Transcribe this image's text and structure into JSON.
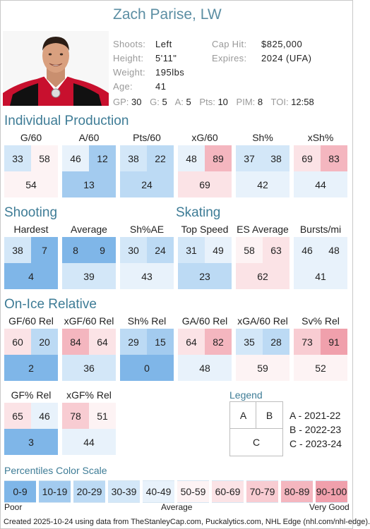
{
  "player": {
    "name": "Zach Parise, LW"
  },
  "bio": [
    {
      "key": "Shoots:",
      "value": "Left"
    },
    {
      "key": "Height:",
      "value": "5'11\""
    },
    {
      "key": "Weight:",
      "value": "195lbs"
    },
    {
      "key": "Age:",
      "value": "41"
    }
  ],
  "contract": [
    {
      "key": "Cap Hit:",
      "value": "$825,000"
    },
    {
      "key": "Expires:",
      "value": "2024 (UFA)"
    }
  ],
  "statline": [
    {
      "key": "GP:",
      "value": "30"
    },
    {
      "key": "G:",
      "value": "5"
    },
    {
      "key": "A:",
      "value": "5"
    },
    {
      "key": "Pts:",
      "value": "10"
    },
    {
      "key": "PIM:",
      "value": "8"
    },
    {
      "key": "TOI:",
      "value": "12:58"
    }
  ],
  "sections": {
    "individual": "Individual Production",
    "shooting": "Shooting",
    "skating": "Skating",
    "onice": "On-Ice Relative"
  },
  "metrics": {
    "row1": [
      {
        "label": "G/60",
        "a": "33",
        "b": "58",
        "c": "54"
      },
      {
        "label": "A/60",
        "a": "46",
        "b": "12",
        "c": "13"
      },
      {
        "label": "Pts/60",
        "a": "38",
        "b": "22",
        "c": "24"
      },
      {
        "label": "xG/60",
        "a": "48",
        "b": "89",
        "c": "69"
      },
      {
        "label": "Sh%",
        "a": "37",
        "b": "38",
        "c": "42"
      },
      {
        "label": "xSh%",
        "a": "69",
        "b": "83",
        "c": "44"
      }
    ],
    "row2": [
      {
        "label": "Hardest",
        "a": "38",
        "b": "7",
        "c": "4"
      },
      {
        "label": "Average",
        "a": "8",
        "b": "9",
        "c": "39"
      },
      {
        "label": "Sh%AE",
        "a": "30",
        "b": "24",
        "c": "43"
      },
      {
        "label": "Top Speed",
        "a": "31",
        "b": "49",
        "c": "23"
      },
      {
        "label": "ES Average",
        "a": "58",
        "b": "63",
        "c": "62"
      },
      {
        "label": "Bursts/mi",
        "a": "46",
        "b": "48",
        "c": "41"
      }
    ],
    "row3": [
      {
        "label": "GF/60 Rel",
        "a": "60",
        "b": "20",
        "c": "2"
      },
      {
        "label": "xGF/60 Rel",
        "a": "84",
        "b": "64",
        "c": "36"
      },
      {
        "label": "Sh% Rel",
        "a": "29",
        "b": "15",
        "c": "0"
      },
      {
        "label": "GA/60 Rel",
        "a": "64",
        "b": "82",
        "c": "48"
      },
      {
        "label": "xGA/60 Rel",
        "a": "35",
        "b": "28",
        "c": "59"
      },
      {
        "label": "Sv% Rel",
        "a": "73",
        "b": "91",
        "c": "52"
      }
    ],
    "row4": [
      {
        "label": "GF% Rel",
        "a": "65",
        "b": "46",
        "c": "3"
      },
      {
        "label": "xGF% Rel",
        "a": "78",
        "b": "51",
        "c": "44"
      }
    ]
  },
  "legend": {
    "title": "Legend",
    "a": "A",
    "b": "B",
    "c": "C",
    "lines": [
      "A - 2021-22",
      "B - 2022-23",
      "C - 2023-24"
    ]
  },
  "scale": {
    "title": "Percentiles Color Scale",
    "bins": [
      {
        "label": "0-9",
        "color": "#7fb6e8"
      },
      {
        "label": "10-19",
        "color": "#a3cbef"
      },
      {
        "label": "20-29",
        "color": "#bcdaf4"
      },
      {
        "label": "30-39",
        "color": "#d3e7f8"
      },
      {
        "label": "40-49",
        "color": "#e8f2fb"
      },
      {
        "label": "50-59",
        "color": "#fdf3f4"
      },
      {
        "label": "60-69",
        "color": "#fbe3e6"
      },
      {
        "label": "70-79",
        "color": "#f8ccd2"
      },
      {
        "label": "80-89",
        "color": "#f4b6bf"
      },
      {
        "label": "90-100",
        "color": "#f0a0ac"
      }
    ],
    "low": "Poor",
    "mid": "Average",
    "high": "Very Good"
  },
  "footer": "Created 2025-10-24 using data from TheStanleyCap.com, Puckalytics.com, NHL Edge (nhl.com/nhl-edge)."
}
